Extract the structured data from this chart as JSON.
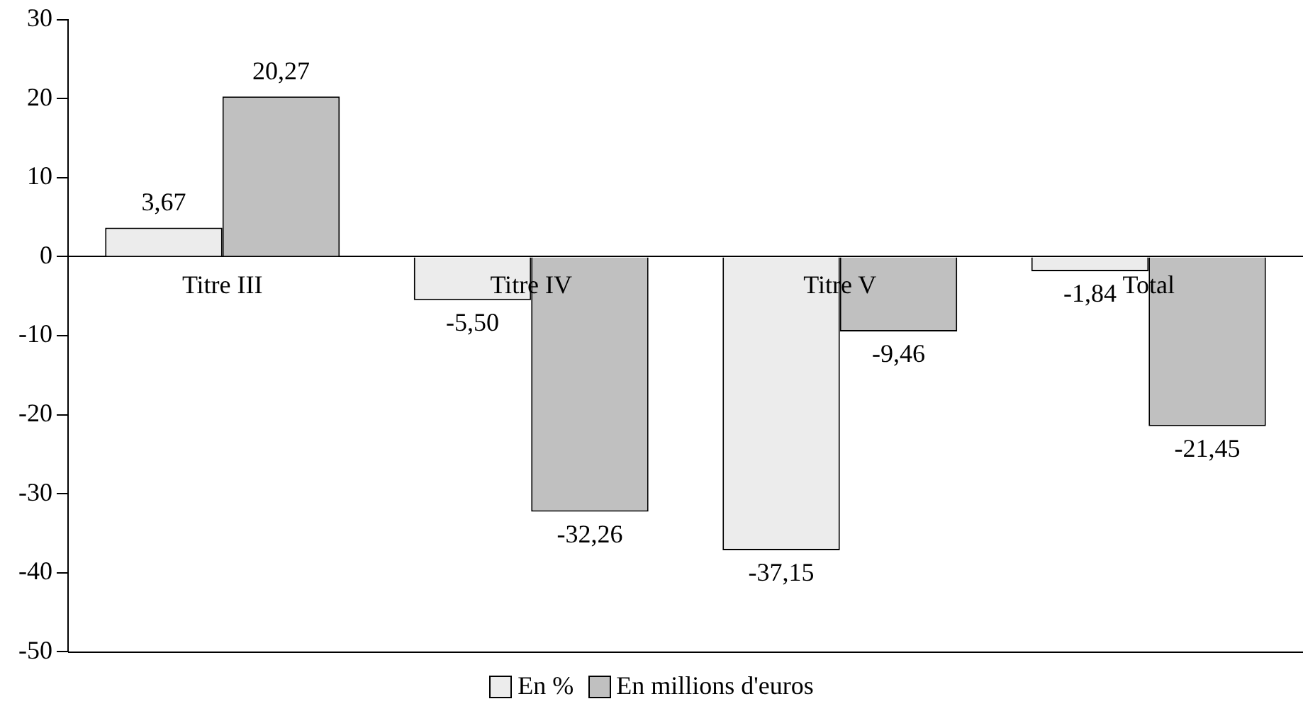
{
  "chart_data": {
    "type": "bar",
    "categories": [
      "Titre III",
      "Titre IV",
      "Titre V",
      "Total"
    ],
    "series": [
      {
        "name": "En %",
        "color": "#ececec",
        "values": [
          3.67,
          -5.5,
          -37.15,
          -1.84
        ],
        "value_labels": [
          "3,67",
          "-5,50",
          "-37,15",
          "-1,84"
        ]
      },
      {
        "name": "En millions d'euros",
        "color": "#c0c0c0",
        "values": [
          20.27,
          -32.26,
          -9.46,
          -21.45
        ],
        "value_labels": [
          "20,27",
          "-32,26",
          "-9,46",
          "-21,45"
        ]
      }
    ],
    "ylim": [
      -50,
      30
    ],
    "yticks": [
      -50,
      -40,
      -30,
      -20,
      -10,
      0,
      10,
      20,
      30
    ],
    "grid": false,
    "legend": "bottom"
  }
}
